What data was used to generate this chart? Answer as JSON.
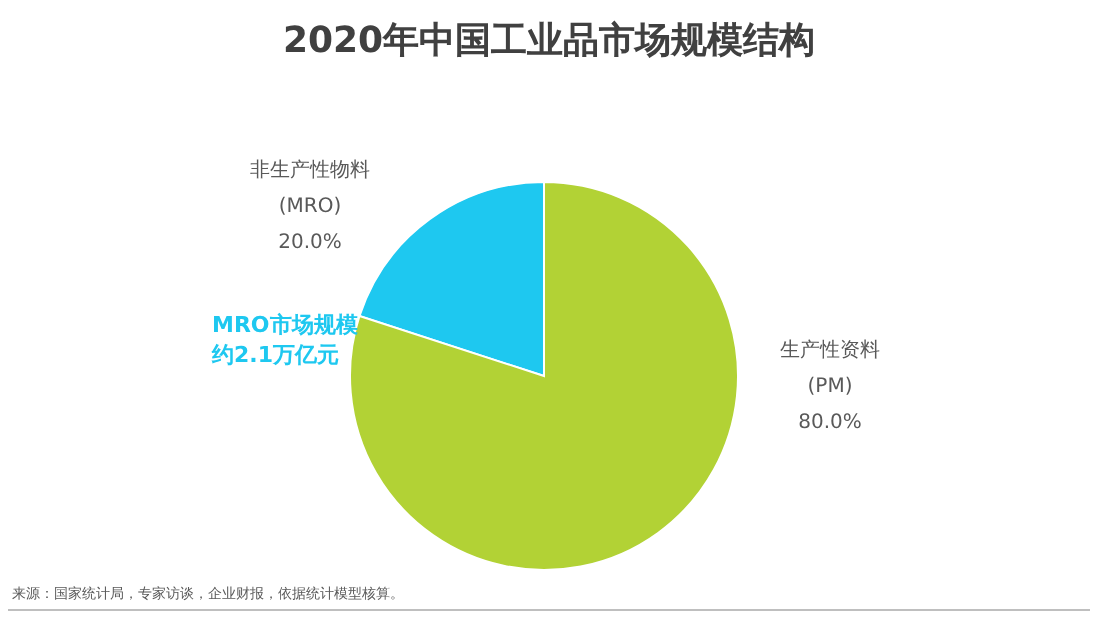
{
  "chart_data": {
    "type": "pie",
    "title": "2020年中国工业品市场规模结构",
    "categories": [
      "非生产性物料\n(MRO)",
      "生产性资料\n(PM)"
    ],
    "values": [
      20.0,
      80.0
    ],
    "value_labels": [
      "20.0%",
      "80.0%"
    ],
    "colors": [
      "#1ec8f0",
      "#b2d235"
    ],
    "annotations": [
      "MRO市场规模约2.1万亿元",
      "来源：国家统计局，专家访谈，企业财报，依据统计模型核算。"
    ]
  }
}
